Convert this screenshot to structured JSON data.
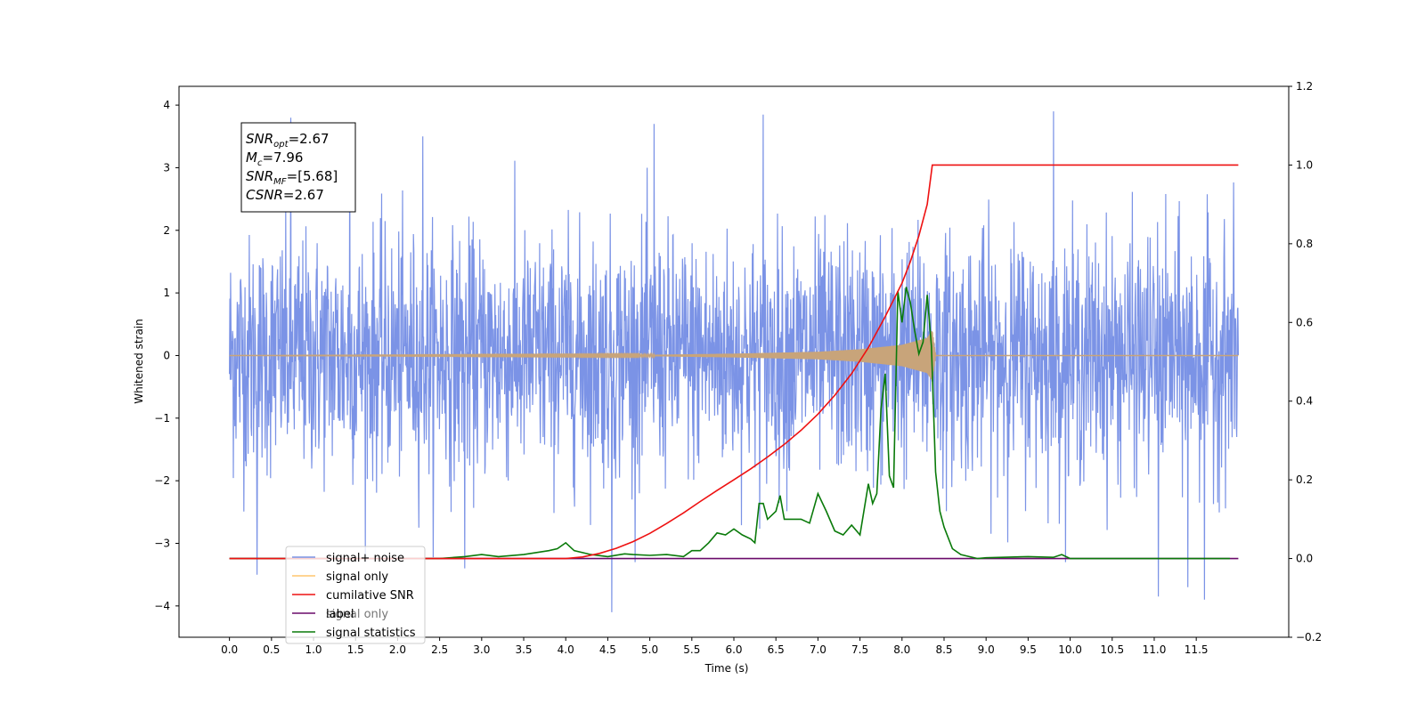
{
  "chart_data": {
    "type": "line",
    "xlabel": "Time (s)",
    "ylabel_left": "Whitened strain",
    "ylabel_right": "",
    "xlim": [
      -0.6,
      12.6
    ],
    "ylim_left": [
      -4.5,
      4.3
    ],
    "ylim_right": [
      -0.2,
      1.2
    ],
    "x_ticks": [
      0.0,
      0.5,
      1.0,
      1.5,
      2.0,
      2.5,
      3.0,
      3.5,
      4.0,
      4.5,
      5.0,
      5.5,
      6.0,
      6.5,
      7.0,
      7.5,
      8.0,
      8.5,
      9.0,
      9.5,
      10.0,
      10.5,
      11.0,
      11.5
    ],
    "x_tick_labels": [
      "0.0",
      "0.5",
      "1.0",
      "1.5",
      "2.0",
      "2.5",
      "3.0",
      "3.5",
      "4.0",
      "4.5",
      "5.0",
      "5.5",
      "6.0",
      "6.5",
      "7.0",
      "7.5",
      "8.0",
      "8.5",
      "9.0",
      "9.5",
      "10.0",
      "10.5",
      "11.0",
      "11.5"
    ],
    "y_left_ticks": [
      4,
      3,
      2,
      1,
      0,
      -1,
      -2,
      -3,
      -4
    ],
    "y_left_tick_labels": [
      "4",
      "3",
      "2",
      "1",
      "0",
      "−1",
      "−2",
      "−3",
      "−4"
    ],
    "y_right_ticks": [
      1.2,
      1.0,
      0.8,
      0.6,
      0.4,
      0.2,
      0.0,
      -0.2
    ],
    "y_right_tick_labels": [
      "1.2",
      "1.0",
      "0.8",
      "0.6",
      "0.4",
      "0.2",
      "0.0",
      "−0.2"
    ],
    "grid": false,
    "legend_position": "lower-left",
    "annotation": {
      "lines": [
        {
          "name": "SNR",
          "sub": "opt",
          "value": "=2.67"
        },
        {
          "name": "M",
          "sub": "c",
          "value": "=7.96"
        },
        {
          "name": "SNR",
          "sub": "MF",
          "value": "=[5.68]"
        },
        {
          "name": "CSNR",
          "sub": "",
          "value": "=2.67"
        }
      ]
    },
    "series": [
      {
        "name": "signal+ noise",
        "color": "#7b93e6",
        "axis": "left",
        "x_range": [
          0.0,
          12.0
        ],
        "noise_std": 1.0,
        "peak_values": [
          {
            "x": 0.33,
            "y": -3.5
          },
          {
            "x": 0.73,
            "y": 3.8
          },
          {
            "x": 1.43,
            "y": 3.65
          },
          {
            "x": 2.3,
            "y": 3.5
          },
          {
            "x": 4.55,
            "y": -4.1
          },
          {
            "x": 5.05,
            "y": 3.7
          },
          {
            "x": 6.35,
            "y": 3.85
          },
          {
            "x": 9.8,
            "y": 3.9
          },
          {
            "x": 11.05,
            "y": -3.85
          },
          {
            "x": 11.6,
            "y": -3.9
          },
          {
            "x": 11.4,
            "y": -3.7
          },
          {
            "x": 2.8,
            "y": -3.4
          }
        ]
      },
      {
        "name": "signal only",
        "color": "#c8a47a",
        "axis": "left",
        "x_range": [
          0.0,
          12.0
        ],
        "envelope": [
          {
            "x": 0.0,
            "y": 0.0
          },
          {
            "x": 5.0,
            "y": 0.01
          },
          {
            "x": 6.0,
            "y": 0.03
          },
          {
            "x": 7.0,
            "y": 0.06
          },
          {
            "x": 7.5,
            "y": 0.1
          },
          {
            "x": 8.0,
            "y": 0.17
          },
          {
            "x": 8.3,
            "y": 0.28
          },
          {
            "x": 8.36,
            "y": 0.4
          },
          {
            "x": 8.4,
            "y": 0.0
          },
          {
            "x": 12.0,
            "y": 0.0
          }
        ]
      },
      {
        "name": "cumilative SNR",
        "color": "#ee1111",
        "axis": "right",
        "x": [
          0.0,
          4.0,
          4.2,
          4.4,
          4.6,
          4.8,
          5.0,
          5.2,
          5.4,
          5.6,
          5.8,
          6.0,
          6.2,
          6.4,
          6.6,
          6.8,
          7.0,
          7.2,
          7.4,
          7.6,
          7.8,
          8.0,
          8.1,
          8.2,
          8.3,
          8.36,
          9.0,
          11.0,
          12.0
        ],
        "values": [
          0.0,
          0.0,
          0.004,
          0.013,
          0.026,
          0.043,
          0.064,
          0.089,
          0.116,
          0.145,
          0.173,
          0.2,
          0.228,
          0.258,
          0.29,
          0.326,
          0.367,
          0.415,
          0.47,
          0.536,
          0.615,
          0.7,
          0.755,
          0.82,
          0.9,
          1.0,
          1.0,
          1.0,
          1.0
        ]
      },
      {
        "name": "label",
        "color": "#6a0a6a",
        "axis": "right",
        "x": [
          0.0,
          12.0
        ],
        "values": [
          0.0,
          0.0
        ]
      },
      {
        "name": "signal statistics",
        "color": "#0a7a0a",
        "axis": "right",
        "x": [
          0.0,
          2.5,
          2.8,
          3.0,
          3.2,
          3.5,
          3.8,
          3.9,
          4.0,
          4.1,
          4.3,
          4.5,
          4.7,
          4.8,
          5.0,
          5.2,
          5.4,
          5.5,
          5.6,
          5.7,
          5.8,
          5.9,
          6.0,
          6.1,
          6.2,
          6.25,
          6.3,
          6.35,
          6.4,
          6.5,
          6.55,
          6.6,
          6.7,
          6.8,
          6.9,
          7.0,
          7.1,
          7.2,
          7.3,
          7.4,
          7.5,
          7.6,
          7.65,
          7.7,
          7.75,
          7.8,
          7.85,
          7.9,
          7.95,
          8.0,
          8.05,
          8.1,
          8.15,
          8.2,
          8.25,
          8.3,
          8.35,
          8.4,
          8.45,
          8.5,
          8.6,
          8.7,
          8.8,
          8.9,
          9.0,
          9.5,
          9.8,
          9.9,
          10.0,
          10.2,
          11.0,
          11.9
        ],
        "values": [
          0.0,
          0.0,
          0.005,
          0.01,
          0.005,
          0.01,
          0.02,
          0.025,
          0.04,
          0.02,
          0.01,
          0.005,
          0.012,
          0.01,
          0.008,
          0.01,
          0.005,
          0.02,
          0.02,
          0.04,
          0.065,
          0.06,
          0.075,
          0.06,
          0.05,
          0.04,
          0.14,
          0.14,
          0.1,
          0.12,
          0.16,
          0.1,
          0.1,
          0.1,
          0.09,
          0.165,
          0.12,
          0.07,
          0.06,
          0.085,
          0.06,
          0.19,
          0.14,
          0.165,
          0.38,
          0.47,
          0.21,
          0.18,
          0.68,
          0.6,
          0.69,
          0.65,
          0.58,
          0.52,
          0.55,
          0.67,
          0.54,
          0.22,
          0.12,
          0.08,
          0.025,
          0.01,
          0.005,
          0.0,
          0.002,
          0.005,
          0.003,
          0.01,
          0.0,
          0.0,
          0.0,
          0.0
        ]
      },
      {
        "name": "signal only",
        "color": "#bbbbbb",
        "axis": "right",
        "legend_only": true
      }
    ]
  }
}
